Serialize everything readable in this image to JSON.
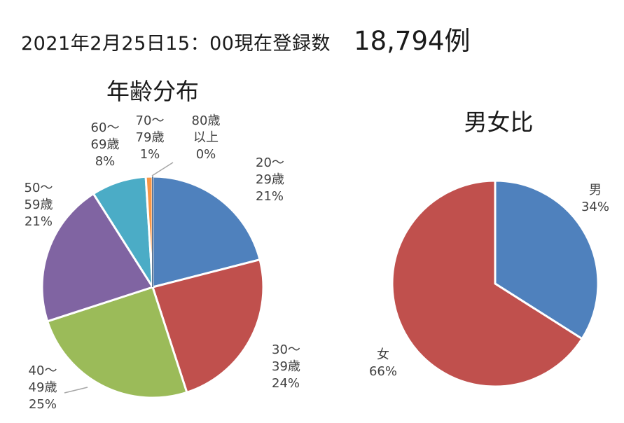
{
  "header": {
    "label": "2021年2月25日15：00現在登録数",
    "count": "18,794例"
  },
  "chart_data": [
    {
      "type": "pie",
      "title": "年齢分布",
      "categories": [
        "20～29歳",
        "30～39歳",
        "40～49歳",
        "50～59歳",
        "60～69歳",
        "70～79歳",
        "80歳以上"
      ],
      "values": [
        21,
        24,
        25,
        21,
        8,
        1,
        0
      ],
      "unit": "%",
      "colors": [
        "#4f81bd",
        "#c0504d",
        "#9bbb59",
        "#8064a2",
        "#4bacc6",
        "#f79646",
        "#2c4d75"
      ],
      "labels": [
        [
          "20～",
          "29歳",
          "21%"
        ],
        [
          "30～",
          "39歳",
          "24%"
        ],
        [
          "40～",
          "49歳",
          "25%"
        ],
        [
          "50～",
          "59歳",
          "21%"
        ],
        [
          "60～",
          "69歳",
          "8%"
        ],
        [
          "70～",
          "79歳",
          "1%"
        ],
        [
          "80歳",
          "以上",
          "0%"
        ]
      ]
    },
    {
      "type": "pie",
      "title": "男女比",
      "categories": [
        "男",
        "女"
      ],
      "values": [
        34,
        66
      ],
      "unit": "%",
      "colors": [
        "#4f81bd",
        "#c0504d"
      ],
      "labels": [
        [
          "男",
          "34%"
        ],
        [
          "女",
          "66%"
        ]
      ]
    }
  ]
}
